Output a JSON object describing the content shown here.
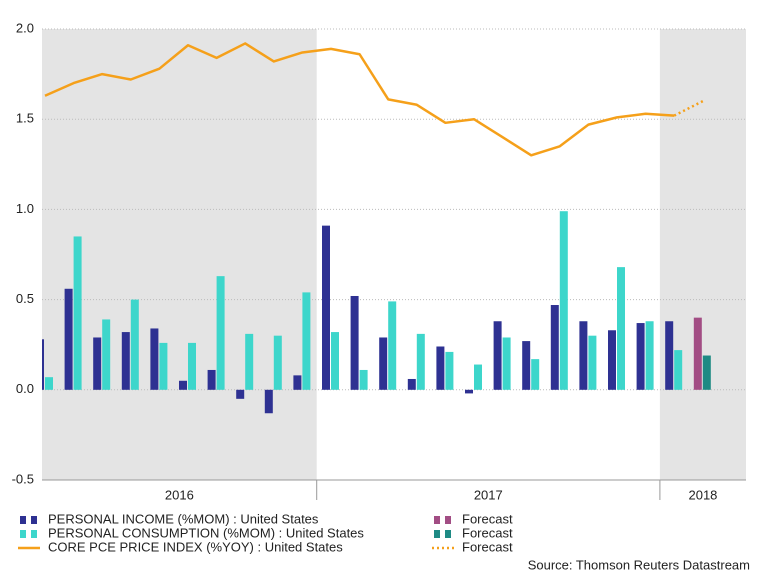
{
  "chart_data": {
    "type": "bar_line",
    "categories": [
      null,
      null,
      null,
      null,
      null,
      null,
      null,
      null,
      null,
      null,
      null,
      null,
      null,
      null,
      null,
      null,
      null,
      null,
      null,
      null,
      null,
      null,
      null,
      null
    ],
    "periods": [
      {
        "label": "2016",
        "shaded": true
      },
      {
        "label": "2017",
        "shaded": false
      },
      {
        "label": "2018",
        "shaded": true
      }
    ],
    "series": [
      {
        "name": "PERSONAL INCOME (%MOM) : United States",
        "kind": "bar",
        "color": "#2e3192",
        "values": [
          0.28,
          0.56,
          0.29,
          0.32,
          0.34,
          0.05,
          0.11,
          -0.05,
          -0.13,
          0.08,
          0.91,
          0.52,
          0.29,
          0.06,
          0.24,
          -0.02,
          0.38,
          0.27,
          0.47,
          0.38,
          0.33,
          0.37,
          0.38,
          null
        ]
      },
      {
        "name": "PERSONAL CONSUMPTION (%MOM) : United States",
        "kind": "bar",
        "color": "#3dd6cb",
        "values": [
          0.07,
          0.85,
          0.39,
          0.5,
          0.26,
          0.26,
          0.63,
          0.31,
          0.3,
          0.54,
          0.32,
          0.11,
          0.49,
          0.31,
          0.21,
          0.14,
          0.29,
          0.17,
          0.99,
          0.3,
          0.68,
          0.38,
          0.22,
          null
        ]
      },
      {
        "name": "CORE PCE PRICE INDEX (%YOY) : United States",
        "kind": "line",
        "color": "#f5a01a",
        "dotted": false,
        "values": [
          1.63,
          1.7,
          1.75,
          1.72,
          1.78,
          1.91,
          1.84,
          1.92,
          1.82,
          1.87,
          1.89,
          1.86,
          1.61,
          1.58,
          1.48,
          1.5,
          1.4,
          1.3,
          1.35,
          1.47,
          1.51,
          1.53,
          1.52,
          null
        ]
      },
      {
        "name": "Forecast",
        "kind": "bar",
        "color": "#a24d84",
        "values": [
          null,
          null,
          null,
          null,
          null,
          null,
          null,
          null,
          null,
          null,
          null,
          null,
          null,
          null,
          null,
          null,
          null,
          null,
          null,
          null,
          null,
          null,
          null,
          0.4
        ]
      },
      {
        "name": "Forecast",
        "kind": "bar",
        "color": "#1e8a84",
        "values": [
          null,
          null,
          null,
          null,
          null,
          null,
          null,
          null,
          null,
          null,
          null,
          null,
          null,
          null,
          null,
          null,
          null,
          null,
          null,
          null,
          null,
          null,
          null,
          0.19
        ]
      },
      {
        "name": "Forecast",
        "kind": "line",
        "color": "#f5a01a",
        "dotted": true,
        "values": [
          null,
          null,
          null,
          null,
          null,
          null,
          null,
          null,
          null,
          null,
          null,
          null,
          null,
          null,
          null,
          null,
          null,
          null,
          null,
          null,
          null,
          null,
          1.52,
          1.6
        ]
      }
    ],
    "ylim": [
      -0.5,
      2.0
    ],
    "yticks": [
      {
        "value": -0.5,
        "label": "-0.5"
      },
      {
        "value": 0,
        "label": "0.0"
      },
      {
        "value": 0.5,
        "label": "0.5"
      },
      {
        "value": 1,
        "label": "1.0"
      },
      {
        "value": 1.5,
        "label": "1.5"
      },
      {
        "value": 2,
        "label": "2.0"
      }
    ],
    "grid": true,
    "source": "Source: Thomson Reuters Datastream"
  }
}
